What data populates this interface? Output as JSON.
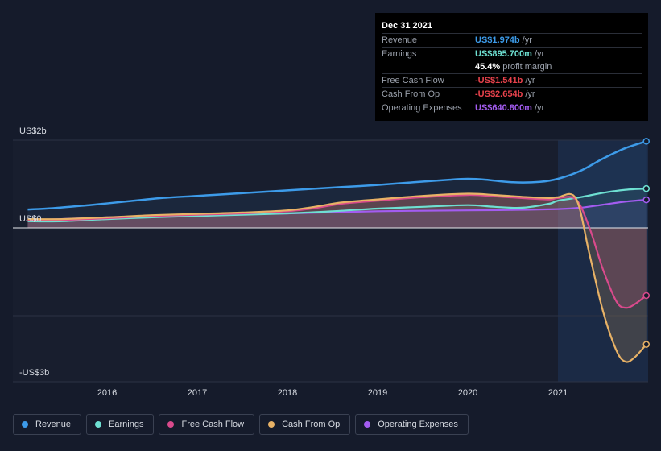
{
  "tooltip": {
    "date": "Dec 31 2021",
    "rows": [
      {
        "label": "Revenue",
        "value": "US$1.974b",
        "unit": "/yr",
        "color": "#3d9be9"
      },
      {
        "label": "Earnings",
        "value": "US$895.700m",
        "unit": "/yr",
        "color": "#6ee0d2"
      },
      {
        "label": "",
        "value": "45.4%",
        "unit": "profit margin",
        "color": "#ffffff"
      },
      {
        "label": "Free Cash Flow",
        "value": "-US$1.541b",
        "unit": "/yr",
        "color": "#e8424c"
      },
      {
        "label": "Cash From Op",
        "value": "-US$2.654b",
        "unit": "/yr",
        "color": "#e8424c"
      },
      {
        "label": "Operating Expenses",
        "value": "US$640.800m",
        "unit": "/yr",
        "color": "#a35cf0"
      }
    ]
  },
  "chart_data": {
    "type": "line",
    "y_axis_labels": [
      "US$2b",
      "US$0",
      "-US$3b"
    ],
    "x_tick_labels": [
      "2016",
      "2017",
      "2018",
      "2019",
      "2020",
      "2021"
    ],
    "ylim": [
      -3.4,
      2.0
    ],
    "xlim": [
      2015.1,
      2021.98
    ],
    "highlight_start": 2021.0,
    "legend_position": "bottom",
    "series": [
      {
        "name": "Revenue",
        "color": "#3d9be9",
        "x": [
          2015.12,
          2015.4,
          2015.8,
          2016.2,
          2016.6,
          2017.0,
          2017.4,
          2017.8,
          2018.2,
          2018.6,
          2019.0,
          2019.4,
          2019.8,
          2020.0,
          2020.2,
          2020.5,
          2020.8,
          2021.0,
          2021.25,
          2021.5,
          2021.75,
          2021.98
        ],
        "y": [
          0.42,
          0.45,
          0.52,
          0.6,
          0.68,
          0.73,
          0.78,
          0.83,
          0.88,
          0.93,
          0.98,
          1.04,
          1.1,
          1.12,
          1.1,
          1.04,
          1.05,
          1.12,
          1.3,
          1.58,
          1.82,
          1.974
        ]
      },
      {
        "name": "Earnings",
        "color": "#6ee0d2",
        "x": [
          2015.12,
          2015.5,
          2016.0,
          2016.5,
          2017.0,
          2017.5,
          2018.0,
          2018.5,
          2019.0,
          2019.5,
          2020.0,
          2020.3,
          2020.6,
          2020.9,
          2021.0,
          2021.25,
          2021.5,
          2021.75,
          2021.98
        ],
        "y": [
          0.15,
          0.15,
          0.2,
          0.24,
          0.27,
          0.3,
          0.33,
          0.38,
          0.44,
          0.48,
          0.52,
          0.48,
          0.46,
          0.55,
          0.62,
          0.7,
          0.8,
          0.87,
          0.8957
        ]
      },
      {
        "name": "Free Cash Flow",
        "color": "#d94a8c",
        "x": [
          2015.12,
          2015.5,
          2016.0,
          2016.5,
          2017.0,
          2017.5,
          2018.0,
          2018.3,
          2018.6,
          2019.0,
          2019.5,
          2020.0,
          2020.3,
          2020.6,
          2020.9,
          2021.0,
          2021.2,
          2021.35,
          2021.5,
          2021.65,
          2021.75,
          2021.85,
          2021.98
        ],
        "y": [
          0.18,
          0.18,
          0.22,
          0.27,
          0.3,
          0.33,
          0.38,
          0.45,
          0.55,
          0.62,
          0.7,
          0.75,
          0.72,
          0.68,
          0.65,
          0.68,
          0.65,
          0.0,
          -0.95,
          -1.68,
          -1.82,
          -1.74,
          -1.541
        ]
      },
      {
        "name": "Cash From Op",
        "color": "#e8b266",
        "x": [
          2015.12,
          2015.5,
          2016.0,
          2016.5,
          2017.0,
          2017.5,
          2018.0,
          2018.3,
          2018.6,
          2019.0,
          2019.5,
          2020.0,
          2020.3,
          2020.6,
          2020.9,
          2021.0,
          2021.2,
          2021.35,
          2021.5,
          2021.65,
          2021.75,
          2021.85,
          2021.98
        ],
        "y": [
          0.2,
          0.2,
          0.24,
          0.29,
          0.32,
          0.35,
          0.4,
          0.48,
          0.58,
          0.65,
          0.73,
          0.78,
          0.75,
          0.71,
          0.68,
          0.7,
          0.67,
          -0.6,
          -1.9,
          -2.8,
          -3.05,
          -2.95,
          -2.654
        ]
      },
      {
        "name": "Operating Expenses",
        "color": "#a35cf0",
        "x": [
          2015.12,
          2016.0,
          2017.0,
          2018.0,
          2019.0,
          2020.0,
          2020.5,
          2021.0,
          2021.25,
          2021.5,
          2021.75,
          2021.98
        ],
        "y": [
          0.17,
          0.24,
          0.3,
          0.33,
          0.38,
          0.4,
          0.41,
          0.43,
          0.46,
          0.53,
          0.6,
          0.6408
        ]
      }
    ]
  },
  "legend": [
    {
      "label": "Revenue",
      "color": "#3d9be9"
    },
    {
      "label": "Earnings",
      "color": "#6ee0d2"
    },
    {
      "label": "Free Cash Flow",
      "color": "#d94a8c"
    },
    {
      "label": "Cash From Op",
      "color": "#e8b266"
    },
    {
      "label": "Operating Expenses",
      "color": "#a35cf0"
    }
  ]
}
